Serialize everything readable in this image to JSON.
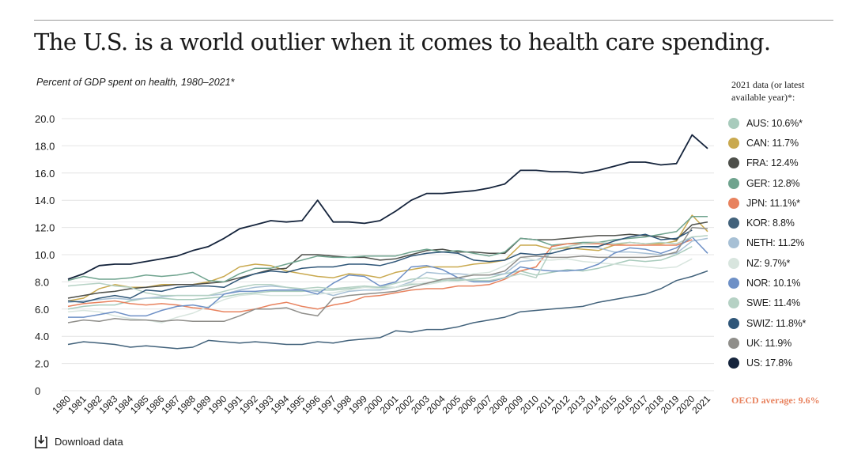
{
  "title": "The U.S. is a world outlier when it comes to health care spending.",
  "subtitle": "Percent of GDP spent on health, 1980–2021*",
  "legend_heading": "2021 data (or latest available year)*:",
  "oecd_label": "OECD average: 9.6%",
  "download_label": "Download data",
  "download_icon": "download-icon",
  "chart_data": {
    "type": "line",
    "ylim": [
      0,
      20
    ],
    "yticks": [
      "0",
      "2.0",
      "4.0",
      "6.0",
      "8.0",
      "10.0",
      "12.0",
      "14.0",
      "16.0",
      "18.0",
      "20.0"
    ],
    "x": [
      "1980",
      "1981",
      "1982",
      "1983",
      "1984",
      "1985",
      "1986",
      "1987",
      "1988",
      "1989",
      "1990",
      "1991",
      "1992",
      "1993",
      "1994",
      "1995",
      "1996",
      "1997",
      "1998",
      "1999",
      "2000",
      "2001",
      "2002",
      "2003",
      "2004",
      "2005",
      "2006",
      "2007",
      "2008",
      "2009",
      "2010",
      "2011",
      "2012",
      "2013",
      "2014",
      "2015",
      "2016",
      "2017",
      "2018",
      "2019",
      "2020",
      "2021"
    ],
    "grid": true,
    "legend_position": "right",
    "series": [
      {
        "name": "AUS",
        "label": "AUS: 10.6%*",
        "color": "#a8cbbc",
        "values": [
          6.0,
          6.2,
          6.3,
          6.3,
          6.6,
          6.8,
          6.8,
          6.7,
          6.7,
          6.8,
          6.9,
          7.1,
          7.2,
          7.3,
          7.3,
          7.3,
          7.4,
          7.4,
          7.5,
          7.6,
          7.6,
          7.6,
          7.8,
          7.9,
          8.1,
          8.1,
          8.2,
          8.3,
          8.6,
          8.8,
          8.5,
          8.7,
          8.9,
          8.8,
          9.0,
          9.3,
          9.6,
          9.5,
          9.6,
          10.0,
          10.6,
          null
        ]
      },
      {
        "name": "CAN",
        "label": "CAN: 11.7%",
        "color": "#c9a94f",
        "values": [
          6.6,
          6.8,
          7.5,
          7.8,
          7.6,
          7.6,
          7.8,
          7.8,
          7.8,
          8.0,
          8.4,
          9.1,
          9.3,
          9.2,
          8.8,
          8.6,
          8.4,
          8.3,
          8.6,
          8.5,
          8.3,
          8.7,
          8.9,
          9.1,
          9.1,
          9.1,
          9.3,
          9.4,
          9.6,
          10.7,
          10.7,
          10.4,
          10.5,
          10.4,
          10.3,
          10.7,
          10.9,
          10.8,
          10.8,
          11.0,
          12.9,
          11.7
        ]
      },
      {
        "name": "FRA",
        "label": "FRA: 12.4%",
        "color": "#4d4f4a",
        "values": [
          6.8,
          7.0,
          7.2,
          7.3,
          7.5,
          7.6,
          7.7,
          7.8,
          7.8,
          7.9,
          8.0,
          8.3,
          8.6,
          8.9,
          9.0,
          10.0,
          10.0,
          9.9,
          9.8,
          9.8,
          9.6,
          9.7,
          10.0,
          10.3,
          10.4,
          10.2,
          10.2,
          10.1,
          10.1,
          11.2,
          11.1,
          11.1,
          11.2,
          11.3,
          11.4,
          11.4,
          11.5,
          11.4,
          11.3,
          11.1,
          12.2,
          12.4
        ]
      },
      {
        "name": "GER",
        "label": "GER: 12.8%",
        "color": "#6fa38e",
        "values": [
          8.1,
          8.4,
          8.2,
          8.2,
          8.3,
          8.5,
          8.4,
          8.5,
          8.7,
          8.1,
          8.0,
          8.6,
          9.0,
          9.0,
          9.3,
          9.6,
          9.9,
          9.8,
          9.8,
          9.9,
          9.9,
          9.9,
          10.2,
          10.4,
          10.2,
          10.3,
          10.1,
          9.9,
          10.2,
          11.2,
          11.1,
          10.7,
          10.8,
          10.9,
          10.9,
          11.1,
          11.2,
          11.3,
          11.5,
          11.7,
          12.8,
          12.8
        ]
      },
      {
        "name": "JPN",
        "label": "JPN: 11.1%*",
        "color": "#e8825e",
        "values": [
          6.2,
          6.4,
          6.5,
          6.6,
          6.4,
          6.3,
          6.4,
          6.3,
          6.1,
          6.0,
          5.8,
          5.8,
          6.0,
          6.3,
          6.5,
          6.2,
          6.0,
          6.3,
          6.5,
          6.9,
          7.0,
          7.2,
          7.4,
          7.5,
          7.5,
          7.7,
          7.7,
          7.8,
          8.2,
          8.8,
          9.1,
          10.6,
          10.8,
          10.8,
          10.8,
          10.7,
          10.7,
          10.7,
          10.7,
          10.7,
          11.1,
          null
        ]
      },
      {
        "name": "KOR",
        "label": "KOR: 8.8%",
        "color": "#42627b",
        "values": [
          3.4,
          3.6,
          3.5,
          3.4,
          3.2,
          3.3,
          3.2,
          3.1,
          3.2,
          3.7,
          3.6,
          3.5,
          3.6,
          3.5,
          3.4,
          3.4,
          3.6,
          3.5,
          3.7,
          3.8,
          3.9,
          4.4,
          4.3,
          4.5,
          4.5,
          4.7,
          5.0,
          5.2,
          5.4,
          5.8,
          5.9,
          6.0,
          6.1,
          6.2,
          6.5,
          6.7,
          6.9,
          7.1,
          7.5,
          8.1,
          8.4,
          8.8
        ]
      },
      {
        "name": "NETH",
        "label": "NETH: 11.2%",
        "color": "#a7c0d5",
        "values": [
          6.5,
          6.6,
          6.7,
          6.8,
          6.7,
          6.8,
          6.9,
          7.0,
          7.0,
          7.0,
          7.1,
          7.4,
          7.6,
          7.7,
          7.6,
          7.4,
          7.3,
          7.0,
          7.3,
          7.4,
          7.4,
          7.6,
          8.0,
          8.7,
          8.6,
          8.6,
          8.5,
          8.5,
          8.6,
          9.5,
          9.6,
          10.1,
          10.4,
          10.6,
          10.5,
          10.2,
          10.2,
          10.1,
          10.0,
          10.1,
          11.0,
          11.2
        ]
      },
      {
        "name": "NZ",
        "label": "NZ: 9.7%*",
        "color": "#d8e5de",
        "values": [
          5.8,
          5.9,
          5.8,
          5.5,
          5.3,
          5.2,
          5.0,
          5.4,
          5.7,
          6.2,
          6.7,
          7.0,
          7.1,
          7.0,
          7.0,
          7.0,
          7.1,
          7.2,
          7.4,
          7.6,
          7.5,
          7.6,
          7.9,
          7.8,
          8.0,
          8.3,
          8.6,
          8.7,
          9.2,
          9.8,
          9.6,
          9.6,
          9.7,
          9.5,
          9.4,
          9.3,
          9.2,
          9.1,
          9.0,
          9.1,
          9.7,
          null
        ]
      },
      {
        "name": "NOR",
        "label": "NOR: 10.1%",
        "color": "#6e90c6",
        "values": [
          5.4,
          5.4,
          5.6,
          5.8,
          5.5,
          5.5,
          5.9,
          6.2,
          6.3,
          6.1,
          7.1,
          7.3,
          7.3,
          7.4,
          7.4,
          7.4,
          7.1,
          7.9,
          8.5,
          8.4,
          7.7,
          8.0,
          9.1,
          9.2,
          8.9,
          8.3,
          8.0,
          8.0,
          8.3,
          9.1,
          8.9,
          8.8,
          8.8,
          8.9,
          9.3,
          10.1,
          10.5,
          10.4,
          10.1,
          10.5,
          11.3,
          10.1
        ]
      },
      {
        "name": "SWE",
        "label": "SWE: 11.4%",
        "color": "#b5d1c4",
        "values": [
          7.7,
          7.8,
          7.9,
          7.7,
          7.6,
          7.2,
          7.0,
          7.0,
          7.0,
          7.0,
          7.3,
          7.6,
          7.8,
          7.8,
          7.6,
          7.5,
          7.6,
          7.5,
          7.6,
          7.7,
          7.6,
          7.9,
          8.2,
          8.3,
          8.1,
          8.2,
          8.1,
          8.1,
          8.3,
          8.6,
          8.3,
          10.4,
          10.6,
          10.8,
          10.9,
          10.8,
          10.9,
          10.8,
          10.9,
          10.8,
          11.3,
          11.4
        ]
      },
      {
        "name": "SWIZ",
        "label": "SWIZ: 11.8%*",
        "color": "#2f5678",
        "values": [
          6.6,
          6.5,
          6.8,
          7.0,
          6.8,
          7.4,
          7.3,
          7.6,
          7.7,
          7.7,
          7.6,
          8.2,
          8.6,
          8.8,
          8.7,
          9.0,
          9.1,
          9.1,
          9.3,
          9.3,
          9.2,
          9.5,
          9.9,
          10.1,
          10.2,
          10.1,
          9.6,
          9.5,
          9.6,
          10.1,
          10.0,
          10.1,
          10.4,
          10.6,
          10.6,
          11.0,
          11.3,
          11.5,
          11.1,
          11.2,
          11.8,
          null
        ]
      },
      {
        "name": "UK",
        "label": "UK: 11.9%",
        "color": "#8f8e8a",
        "values": [
          5.0,
          5.2,
          5.1,
          5.3,
          5.2,
          5.2,
          5.1,
          5.2,
          5.1,
          5.1,
          5.1,
          5.5,
          6.0,
          6.0,
          6.1,
          5.7,
          5.5,
          6.8,
          7.0,
          7.1,
          7.2,
          7.3,
          7.6,
          7.9,
          8.2,
          8.3,
          8.5,
          8.5,
          8.8,
          9.8,
          9.9,
          9.8,
          9.8,
          9.9,
          9.8,
          9.8,
          9.8,
          9.8,
          9.9,
          10.2,
          12.0,
          11.9
        ]
      },
      {
        "name": "US",
        "label": "US: 17.8%",
        "color": "#15243c",
        "values": [
          8.2,
          8.6,
          9.2,
          9.3,
          9.3,
          9.5,
          9.7,
          9.9,
          10.3,
          10.6,
          11.2,
          11.9,
          12.2,
          12.5,
          12.4,
          12.5,
          14.0,
          12.4,
          12.4,
          12.3,
          12.5,
          13.2,
          14.0,
          14.5,
          14.5,
          14.6,
          14.7,
          14.9,
          15.2,
          16.2,
          16.2,
          16.1,
          16.1,
          16.0,
          16.2,
          16.5,
          16.8,
          16.8,
          16.6,
          16.7,
          18.8,
          17.8
        ]
      }
    ]
  }
}
